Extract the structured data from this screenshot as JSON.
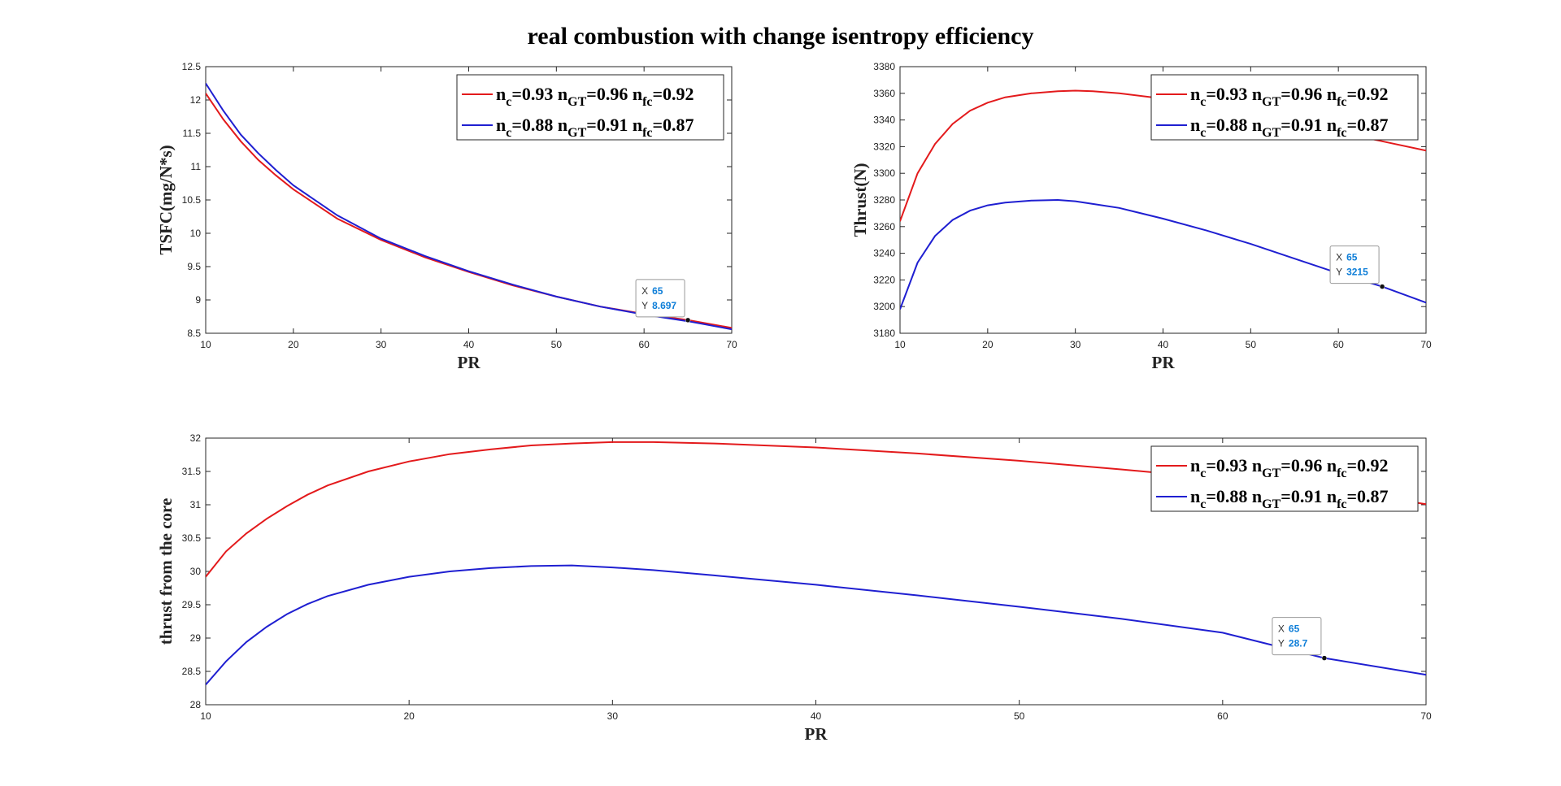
{
  "title": "real combustion with change isentropy efficiency",
  "chart_data": [
    {
      "type": "line",
      "xlabel": "PR",
      "ylabel": "TSFC(mg/N*s)",
      "xlim": [
        10,
        70
      ],
      "ylim": [
        8.5,
        12.5
      ],
      "xticks": [
        "10",
        "20",
        "30",
        "40",
        "50",
        "60",
        "70"
      ],
      "yticks": [
        "8.5",
        "9",
        "9.5",
        "10",
        "10.5",
        "11",
        "11.5",
        "12",
        "12.5"
      ],
      "grid": false,
      "legend_position": "top-right",
      "x": [
        10,
        12,
        14,
        16,
        18,
        20,
        25,
        30,
        35,
        40,
        45,
        50,
        55,
        60,
        65,
        70
      ],
      "series": [
        {
          "legend": {
            "a": "n",
            "a_sub": "c",
            "a_val": "=0.93 ",
            "b": "n",
            "b_sub": "GT",
            "b_val": "=0.96 ",
            "c": "n",
            "c_sub": "fc",
            "c_val": "=0.92"
          },
          "color": "#e31a1c",
          "values": [
            12.1,
            11.71,
            11.38,
            11.1,
            10.87,
            10.66,
            10.22,
            9.9,
            9.64,
            9.42,
            9.22,
            9.05,
            8.9,
            8.79,
            8.697,
            8.58
          ]
        },
        {
          "legend": {
            "a": "n",
            "a_sub": "c",
            "a_val": "=0.88 ",
            "b": "n",
            "b_sub": "GT",
            "b_val": "=0.91 ",
            "c": "n",
            "c_sub": "fc",
            "c_val": "=0.87"
          },
          "color": "#1f1fd1",
          "values": [
            12.25,
            11.84,
            11.48,
            11.2,
            10.95,
            10.72,
            10.27,
            9.92,
            9.66,
            9.43,
            9.23,
            9.05,
            8.9,
            8.78,
            8.68,
            8.56
          ]
        }
      ],
      "datatip": {
        "series": 0,
        "x_label": "X",
        "y_label": "Y",
        "x": "65",
        "y": "8.697",
        "xv": 65,
        "yv": 8.697
      }
    },
    {
      "type": "line",
      "xlabel": "PR",
      "ylabel": "Thrust(N)",
      "xlim": [
        10,
        70
      ],
      "ylim": [
        3180,
        3380
      ],
      "xticks": [
        "10",
        "20",
        "30",
        "40",
        "50",
        "60",
        "70"
      ],
      "yticks": [
        "3180",
        "3200",
        "3220",
        "3240",
        "3260",
        "3280",
        "3300",
        "3320",
        "3340",
        "3360",
        "3380"
      ],
      "grid": false,
      "legend_position": "top-right",
      "x": [
        10,
        12,
        14,
        16,
        18,
        20,
        22,
        25,
        28,
        30,
        32,
        35,
        40,
        45,
        50,
        55,
        60,
        65,
        70
      ],
      "series": [
        {
          "legend": {
            "a": "n",
            "a_sub": "c",
            "a_val": "=0.93 ",
            "b": "n",
            "b_sub": "GT",
            "b_val": "=0.96 ",
            "c": "n",
            "c_sub": "fc",
            "c_val": "=0.92"
          },
          "color": "#e31a1c",
          "values": [
            3264,
            3300,
            3322,
            3337,
            3347,
            3353,
            3357,
            3360,
            3361.5,
            3362,
            3361.5,
            3360,
            3356,
            3351,
            3345,
            3338,
            3331,
            3324,
            3317
          ]
        },
        {
          "legend": {
            "a": "n",
            "a_sub": "c",
            "a_val": "=0.88 ",
            "b": "n",
            "b_sub": "GT",
            "b_val": "=0.91 ",
            "c": "n",
            "c_sub": "fc",
            "c_val": "=0.87"
          },
          "color": "#1f1fd1",
          "values": [
            3198,
            3233,
            3253,
            3265,
            3272,
            3276,
            3278,
            3279.5,
            3280,
            3279,
            3277,
            3274,
            3266,
            3257,
            3247,
            3236,
            3225,
            3215,
            3203
          ]
        }
      ],
      "datatip": {
        "series": 1,
        "x_label": "X",
        "y_label": "Y",
        "x": "65",
        "y": "3215",
        "xv": 65,
        "yv": 3215
      }
    },
    {
      "type": "line",
      "xlabel": "PR",
      "ylabel": "thrust from the core",
      "xlim": [
        10,
        70
      ],
      "ylim": [
        28,
        32
      ],
      "xticks": [
        "10",
        "20",
        "30",
        "40",
        "50",
        "60",
        "70"
      ],
      "yticks": [
        "28",
        "28.5",
        "29",
        "29.5",
        "30",
        "30.5",
        "31",
        "31.5",
        "32"
      ],
      "grid": false,
      "legend_position": "top-right",
      "x": [
        10,
        11,
        12,
        13,
        14,
        15,
        16,
        18,
        20,
        22,
        24,
        26,
        28,
        30,
        32,
        35,
        40,
        45,
        50,
        55,
        60,
        65,
        70
      ],
      "series": [
        {
          "legend": {
            "a": "n",
            "a_sub": "c",
            "a_val": "=0.93 ",
            "b": "n",
            "b_sub": "GT",
            "b_val": "=0.96 ",
            "c": "n",
            "c_sub": "fc",
            "c_val": "=0.92"
          },
          "color": "#e31a1c",
          "values": [
            29.92,
            30.3,
            30.57,
            30.79,
            30.98,
            31.15,
            31.29,
            31.5,
            31.65,
            31.76,
            31.83,
            31.89,
            31.92,
            31.94,
            31.94,
            31.92,
            31.86,
            31.77,
            31.66,
            31.53,
            31.39,
            31.24,
            31.01
          ]
        },
        {
          "legend": {
            "a": "n",
            "a_sub": "c",
            "a_val": "=0.88 ",
            "b": "n",
            "b_sub": "GT",
            "b_val": "=0.91 ",
            "c": "n",
            "c_sub": "fc",
            "c_val": "=0.87"
          },
          "color": "#1f1fd1",
          "values": [
            28.3,
            28.65,
            28.94,
            29.17,
            29.36,
            29.51,
            29.63,
            29.8,
            29.92,
            30.0,
            30.05,
            30.08,
            30.09,
            30.06,
            30.02,
            29.94,
            29.8,
            29.64,
            29.47,
            29.29,
            29.08,
            28.7,
            28.45
          ]
        }
      ],
      "datatip": {
        "series": 1,
        "x_label": "X",
        "y_label": "Y",
        "x": "65",
        "y": "28.7",
        "xv": 65,
        "yv": 28.7
      }
    }
  ]
}
